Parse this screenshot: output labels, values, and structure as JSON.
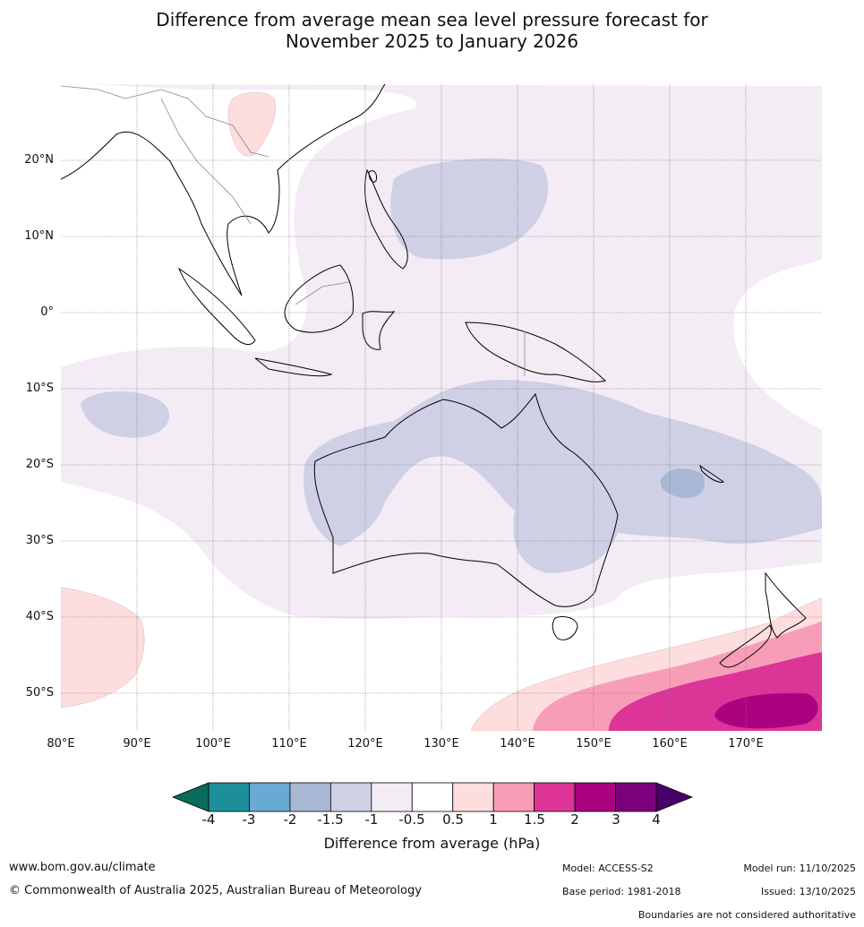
{
  "title_line1": "Difference from average mean sea level pressure forecast for",
  "title_line2": "November 2025 to January 2026",
  "map": {
    "lat_labels": [
      "20°N",
      "10°N",
      "0°",
      "10°S",
      "20°S",
      "30°S",
      "40°S",
      "50°S"
    ],
    "lon_labels": [
      "80°E",
      "90°E",
      "100°E",
      "110°E",
      "120°E",
      "130°E",
      "140°E",
      "150°E",
      "160°E",
      "170°E"
    ]
  },
  "colorbar": {
    "title": "Difference from average (hPa)",
    "tick_labels": [
      "-4",
      "-3",
      "-2",
      "-1.5",
      "-1",
      "-0.5",
      "0.5",
      "1",
      "1.5",
      "2",
      "3",
      "4"
    ],
    "colors": {
      "below_min": "#0b6b5a",
      "b1": "#1c8f9b",
      "b2": "#68aad3",
      "b3": "#a8b7d3",
      "b4": "#cfd0e5",
      "b5": "#f3ecf5",
      "b6": "#ffffff",
      "b7": "#fddddd",
      "b8": "#f89db8",
      "b9": "#dc3597",
      "b10": "#ab0380",
      "b11": "#7a017b",
      "above_max": "#49006a"
    }
  },
  "footer": {
    "website": "www.bom.gov.au/climate",
    "copyright": "© Commonwealth of Australia 2025, Australian Bureau of Meteorology",
    "model": "Model: ACCESS-S2",
    "base_period": "Base period: 1981-2018",
    "model_run": "Model run: 11/10/2025",
    "issued": "Issued: 13/10/2025",
    "disclaimer": "Boundaries are not considered authoritative"
  }
}
